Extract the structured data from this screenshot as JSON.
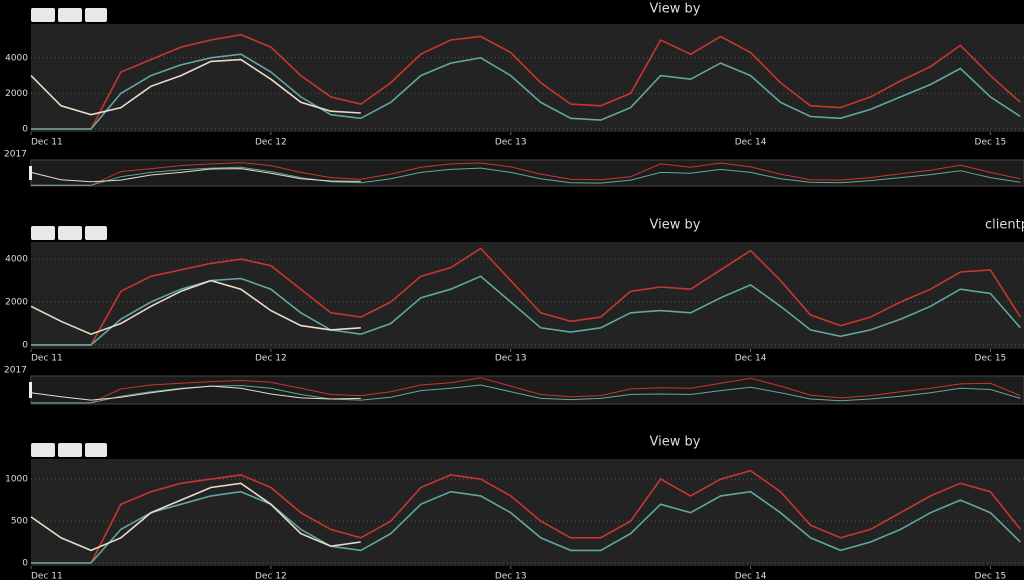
{
  "chart_data": [
    {
      "type": "line",
      "title": "View by",
      "x_year_label": "2017",
      "x": [
        0,
        0.125,
        0.25,
        0.375,
        0.5,
        0.625,
        0.75,
        0.875,
        1,
        1.125,
        1.25,
        1.375,
        1.5,
        1.625,
        1.75,
        1.875,
        2,
        2.125,
        2.25,
        2.375,
        2.5,
        2.625,
        2.75,
        2.875,
        3,
        3.125,
        3.25,
        3.375,
        3.5,
        3.625,
        3.75,
        3.875,
        4,
        4.125
      ],
      "series": [
        {
          "color": "#c8362e",
          "values": [
            0,
            0,
            0,
            3200,
            3900,
            4600,
            5000,
            5300,
            4600,
            3000,
            1800,
            1400,
            2600,
            4200,
            5000,
            5200,
            4300,
            2600,
            1400,
            1300,
            2000,
            5000,
            4200,
            5200,
            4300,
            2600,
            1300,
            1200,
            1800,
            2700,
            3500,
            4700,
            3000,
            1500
          ]
        },
        {
          "color": "#5fa8a0",
          "values": [
            0,
            0,
            0,
            2000,
            3000,
            3600,
            4000,
            4200,
            3200,
            1800,
            800,
            600,
            1500,
            3000,
            3700,
            4000,
            3000,
            1500,
            600,
            500,
            1200,
            3000,
            2800,
            3700,
            3000,
            1500,
            700,
            600,
            1100,
            1800,
            2500,
            3400,
            1800,
            700
          ]
        },
        {
          "color": "#e8dcc8",
          "values": [
            3000,
            1300,
            800,
            1200,
            2400,
            3000,
            3800,
            3900,
            2800,
            1500,
            1000,
            900,
            null,
            null,
            null,
            null,
            null,
            null,
            null,
            null,
            null,
            null,
            null,
            null,
            null,
            null,
            null,
            null,
            null,
            null,
            null,
            null,
            null,
            null
          ]
        }
      ],
      "xlim": [
        0,
        4.14
      ],
      "ylim": [
        -170,
        5900
      ],
      "xticks": [
        {
          "value": 0,
          "label": "Dec 11"
        },
        {
          "value": 1,
          "label": "Dec 12"
        },
        {
          "value": 2,
          "label": "Dec 13"
        },
        {
          "value": 3,
          "label": "Dec 14"
        },
        {
          "value": 4,
          "label": "Dec 15"
        }
      ],
      "yticks": [
        0,
        2000,
        4000
      ],
      "grid": true
    },
    {
      "type": "line",
      "title": "View by",
      "x_year_label": "2017",
      "annotation": "clientp",
      "x": [
        0,
        0.125,
        0.25,
        0.375,
        0.5,
        0.625,
        0.75,
        0.875,
        1,
        1.125,
        1.25,
        1.375,
        1.5,
        1.625,
        1.75,
        1.875,
        2,
        2.125,
        2.25,
        2.375,
        2.5,
        2.625,
        2.75,
        2.875,
        3,
        3.125,
        3.25,
        3.375,
        3.5,
        3.625,
        3.75,
        3.875,
        4,
        4.125
      ],
      "series": [
        {
          "color": "#c8362e",
          "values": [
            0,
            0,
            0,
            2500,
            3200,
            3500,
            3800,
            4000,
            3700,
            2600,
            1500,
            1300,
            2000,
            3200,
            3600,
            4500,
            3000,
            1500,
            1100,
            1300,
            2500,
            2700,
            2600,
            3500,
            4400,
            3000,
            1400,
            900,
            1300,
            2000,
            2600,
            3400,
            3500,
            1300
          ]
        },
        {
          "color": "#5fa8a0",
          "values": [
            0,
            0,
            0,
            1200,
            2000,
            2600,
            3000,
            3100,
            2600,
            1500,
            700,
            500,
            1000,
            2200,
            2600,
            3200,
            2000,
            800,
            600,
            800,
            1500,
            1600,
            1500,
            2200,
            2800,
            1800,
            700,
            400,
            700,
            1200,
            1800,
            2600,
            2400,
            800
          ]
        },
        {
          "color": "#e8dcc8",
          "values": [
            1800,
            1100,
            500,
            1000,
            1800,
            2500,
            3000,
            2600,
            1600,
            900,
            700,
            800,
            null,
            null,
            null,
            null,
            null,
            null,
            null,
            null,
            null,
            null,
            null,
            null,
            null,
            null,
            null,
            null,
            null,
            null,
            null,
            null,
            null,
            null
          ]
        }
      ],
      "xlim": [
        0,
        4.14
      ],
      "ylim": [
        -190,
        4800
      ],
      "xticks": [
        {
          "value": 0,
          "label": "Dec 11"
        },
        {
          "value": 1,
          "label": "Dec 12"
        },
        {
          "value": 2,
          "label": "Dec 13"
        },
        {
          "value": 3,
          "label": "Dec 14"
        },
        {
          "value": 4,
          "label": "Dec 15"
        }
      ],
      "yticks": [
        0,
        2000,
        4000
      ],
      "grid": true
    },
    {
      "type": "line",
      "title": "View by",
      "x": [
        0,
        0.125,
        0.25,
        0.375,
        0.5,
        0.625,
        0.75,
        0.875,
        1,
        1.125,
        1.25,
        1.375,
        1.5,
        1.625,
        1.75,
        1.875,
        2,
        2.125,
        2.25,
        2.375,
        2.5,
        2.625,
        2.75,
        2.875,
        3,
        3.125,
        3.25,
        3.375,
        3.5,
        3.625,
        3.75,
        3.875,
        4,
        4.125
      ],
      "series": [
        {
          "color": "#c8362e",
          "values": [
            0,
            0,
            0,
            700,
            850,
            950,
            1000,
            1050,
            900,
            600,
            400,
            300,
            500,
            900,
            1050,
            1000,
            800,
            500,
            300,
            300,
            500,
            1000,
            800,
            1000,
            1100,
            850,
            450,
            300,
            400,
            600,
            800,
            950,
            850,
            400
          ]
        },
        {
          "color": "#5fa8a0",
          "values": [
            0,
            0,
            0,
            400,
            600,
            700,
            800,
            850,
            700,
            400,
            200,
            150,
            350,
            700,
            850,
            800,
            600,
            300,
            150,
            150,
            350,
            700,
            600,
            800,
            850,
            600,
            300,
            150,
            250,
            400,
            600,
            750,
            600,
            250
          ]
        },
        {
          "color": "#e8dcc8",
          "values": [
            550,
            300,
            150,
            300,
            600,
            750,
            900,
            950,
            700,
            350,
            200,
            250,
            null,
            null,
            null,
            null,
            null,
            null,
            null,
            null,
            null,
            null,
            null,
            null,
            null,
            null,
            null,
            null,
            null,
            null,
            null,
            null,
            null,
            null
          ]
        }
      ],
      "xlim": [
        0,
        4.14
      ],
      "ylim": [
        -36,
        1240
      ],
      "xticks": [
        {
          "value": 0,
          "label": "Dec 11"
        },
        {
          "value": 1,
          "label": "Dec 12"
        },
        {
          "value": 2,
          "label": "Dec 13"
        },
        {
          "value": 3,
          "label": "Dec 14"
        },
        {
          "value": 4,
          "label": "Dec 15"
        }
      ],
      "yticks": [
        0,
        500,
        1000
      ],
      "grid": true
    }
  ]
}
